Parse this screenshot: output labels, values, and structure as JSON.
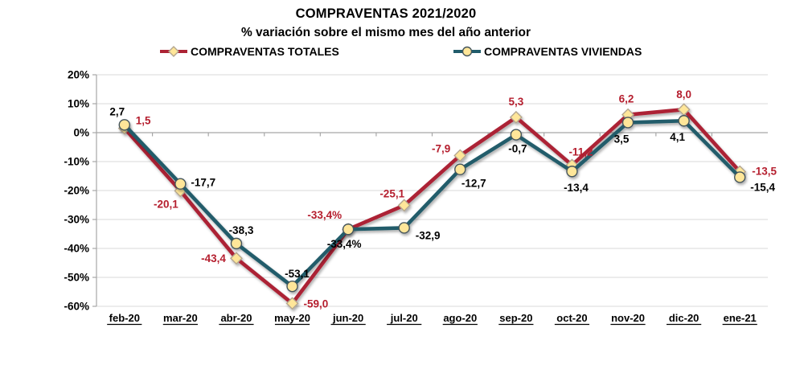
{
  "chart": {
    "title": "COMPRAVENTAS  2021/2020",
    "subtitle": "% variación sobre el mismo mes del año anterior"
  },
  "chart_data": {
    "type": "line",
    "title": "COMPRAVENTAS  2021/2020",
    "subtitle": "% variación sobre el mismo mes del año anterior",
    "categories": [
      "feb-20",
      "mar-20",
      "abr-20",
      "may-20",
      "jun-20",
      "jul-20",
      "ago-20",
      "sep-20",
      "oct-20",
      "nov-20",
      "dic-20",
      "ene-21"
    ],
    "y_tick_labels": [
      "20%",
      "10%",
      "0%",
      "-10%",
      "-20%",
      "-30%",
      "-40%",
      "-50%",
      "-60%"
    ],
    "y_tick_values": [
      20,
      10,
      0,
      -10,
      -20,
      -30,
      -40,
      -50,
      -60
    ],
    "ylim": [
      -60,
      20
    ],
    "grid": true,
    "legend_position": "top",
    "series": [
      {
        "name": "COMPRAVENTAS TOTALES",
        "marker": "diamond",
        "color": "#AC2334",
        "marker_fill": "#FFE699",
        "marker_stroke": "#B3A68F",
        "label_color": "#B51E2E",
        "values": [
          1.5,
          -20.1,
          -43.4,
          -59.0,
          -33.4,
          -25.1,
          -7.9,
          5.3,
          -11.2,
          6.2,
          8.0,
          -13.5
        ],
        "labels": [
          "1,5",
          "-20,1",
          "-43,4",
          "-59,0",
          "-33,4%",
          "-25,1",
          "-7,9",
          "5,3",
          "-11,2",
          "6,2",
          "8,0",
          "-13,5"
        ]
      },
      {
        "name": "COMPRAVENTAS VIVIENDAS",
        "marker": "circle",
        "color": "#215C6B",
        "marker_fill": "#FFE699",
        "marker_stroke": "#44555C",
        "label_color": "#000000",
        "values": [
          2.7,
          -17.7,
          -38.3,
          -53.1,
          -33.4,
          -32.9,
          -12.7,
          -0.7,
          -13.4,
          3.5,
          4.1,
          -15.4
        ],
        "labels": [
          "2,7",
          "-17,7",
          "-38,3",
          "-53,1",
          "-33,4%",
          "-32,9",
          "-12,7",
          "-0,7",
          "-13,4",
          "3,5",
          "4,1",
          "-15,4"
        ]
      }
    ],
    "colors": {
      "gridline": "#D9D9D9",
      "axis": "#A6A6A6",
      "background": "#FFFFFF"
    }
  }
}
